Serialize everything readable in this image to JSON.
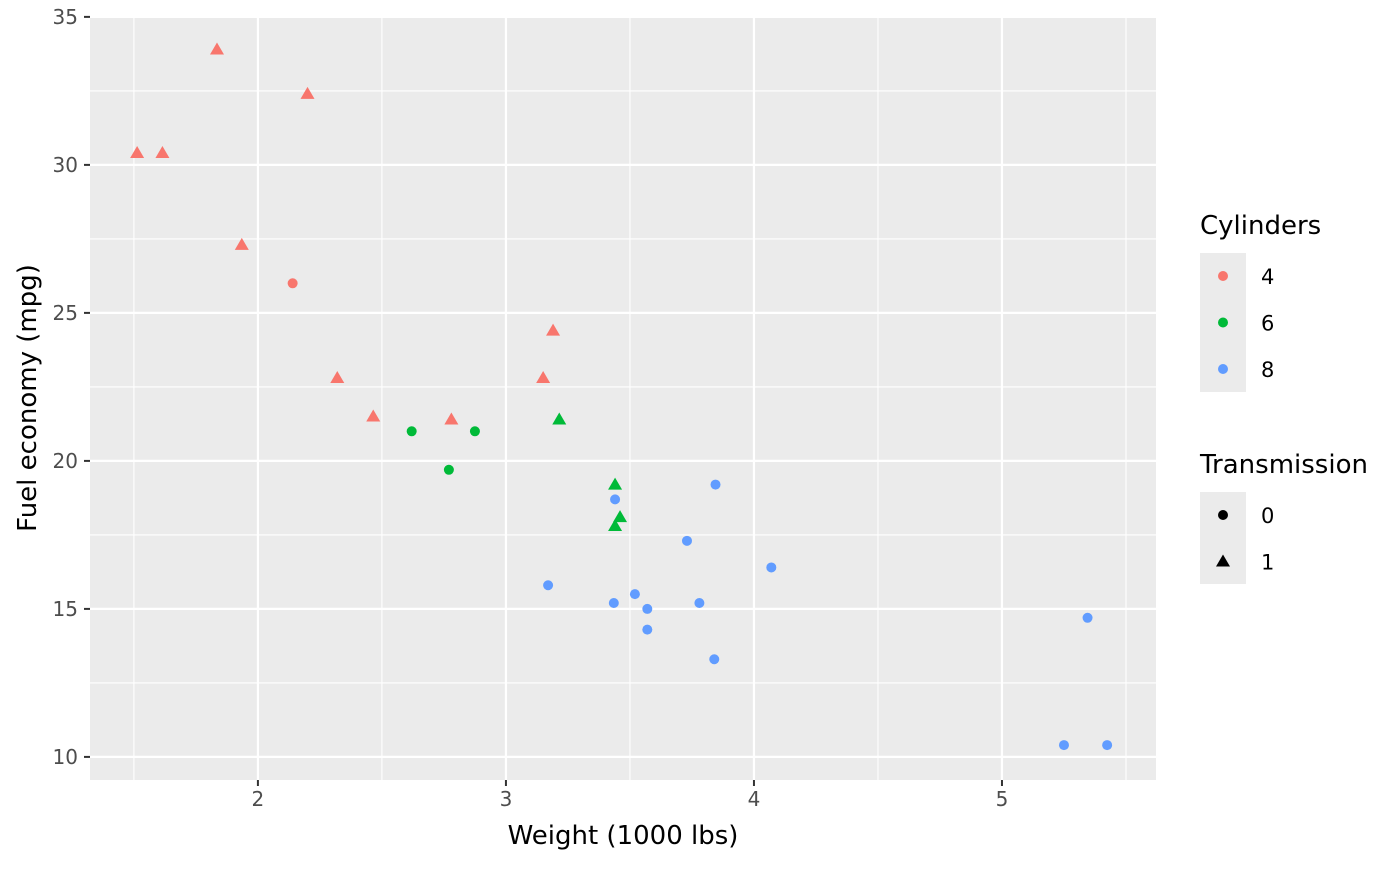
{
  "chart_data": {
    "type": "scatter",
    "xlabel": "Weight (1000 lbs)",
    "ylabel": "Fuel economy (mpg)",
    "xlim": [
      1.323,
      5.621
    ],
    "ylim": [
      9.22,
      35.03
    ],
    "xticks": [
      2,
      3,
      4,
      5
    ],
    "yticks": [
      10,
      15,
      20,
      25,
      30,
      35
    ],
    "grid": true,
    "legend_position": "right",
    "color_legend": {
      "title": "Cylinders",
      "entries": [
        {
          "label": "4",
          "color": "#F8766D"
        },
        {
          "label": "6",
          "color": "#00BA38"
        },
        {
          "label": "8",
          "color": "#619CFF"
        }
      ]
    },
    "shape_legend": {
      "title": "Transmission",
      "entries": [
        {
          "label": "0",
          "shape": "circle"
        },
        {
          "label": "1",
          "shape": "triangle"
        }
      ]
    },
    "points": [
      {
        "x": 2.62,
        "y": 21.0,
        "cyl": "6",
        "shape": "0"
      },
      {
        "x": 2.875,
        "y": 21.0,
        "cyl": "6",
        "shape": "0"
      },
      {
        "x": 2.32,
        "y": 22.8,
        "cyl": "4",
        "shape": "1"
      },
      {
        "x": 3.215,
        "y": 21.4,
        "cyl": "6",
        "shape": "1"
      },
      {
        "x": 3.44,
        "y": 18.7,
        "cyl": "8",
        "shape": "0"
      },
      {
        "x": 3.46,
        "y": 18.1,
        "cyl": "6",
        "shape": "1"
      },
      {
        "x": 3.57,
        "y": 14.3,
        "cyl": "8",
        "shape": "0"
      },
      {
        "x": 3.19,
        "y": 24.4,
        "cyl": "4",
        "shape": "1"
      },
      {
        "x": 3.15,
        "y": 22.8,
        "cyl": "4",
        "shape": "1"
      },
      {
        "x": 3.44,
        "y": 19.2,
        "cyl": "6",
        "shape": "1"
      },
      {
        "x": 3.44,
        "y": 17.8,
        "cyl": "6",
        "shape": "1"
      },
      {
        "x": 4.07,
        "y": 16.4,
        "cyl": "8",
        "shape": "0"
      },
      {
        "x": 3.73,
        "y": 17.3,
        "cyl": "8",
        "shape": "0"
      },
      {
        "x": 3.78,
        "y": 15.2,
        "cyl": "8",
        "shape": "0"
      },
      {
        "x": 5.25,
        "y": 10.4,
        "cyl": "8",
        "shape": "0"
      },
      {
        "x": 5.424,
        "y": 10.4,
        "cyl": "8",
        "shape": "0"
      },
      {
        "x": 5.345,
        "y": 14.7,
        "cyl": "8",
        "shape": "0"
      },
      {
        "x": 2.2,
        "y": 32.4,
        "cyl": "4",
        "shape": "1"
      },
      {
        "x": 1.615,
        "y": 30.4,
        "cyl": "4",
        "shape": "1"
      },
      {
        "x": 1.835,
        "y": 33.9,
        "cyl": "4",
        "shape": "1"
      },
      {
        "x": 2.465,
        "y": 21.5,
        "cyl": "4",
        "shape": "1"
      },
      {
        "x": 3.52,
        "y": 15.5,
        "cyl": "8",
        "shape": "0"
      },
      {
        "x": 3.435,
        "y": 15.2,
        "cyl": "8",
        "shape": "0"
      },
      {
        "x": 3.84,
        "y": 13.3,
        "cyl": "8",
        "shape": "0"
      },
      {
        "x": 3.845,
        "y": 19.2,
        "cyl": "8",
        "shape": "0"
      },
      {
        "x": 1.935,
        "y": 27.3,
        "cyl": "4",
        "shape": "1"
      },
      {
        "x": 2.14,
        "y": 26.0,
        "cyl": "4",
        "shape": "0"
      },
      {
        "x": 1.513,
        "y": 30.4,
        "cyl": "4",
        "shape": "1"
      },
      {
        "x": 3.17,
        "y": 15.8,
        "cyl": "8",
        "shape": "0"
      },
      {
        "x": 2.77,
        "y": 19.7,
        "cyl": "6",
        "shape": "0"
      },
      {
        "x": 3.57,
        "y": 15.0,
        "cyl": "8",
        "shape": "0"
      },
      {
        "x": 2.78,
        "y": 21.4,
        "cyl": "4",
        "shape": "1"
      }
    ]
  }
}
